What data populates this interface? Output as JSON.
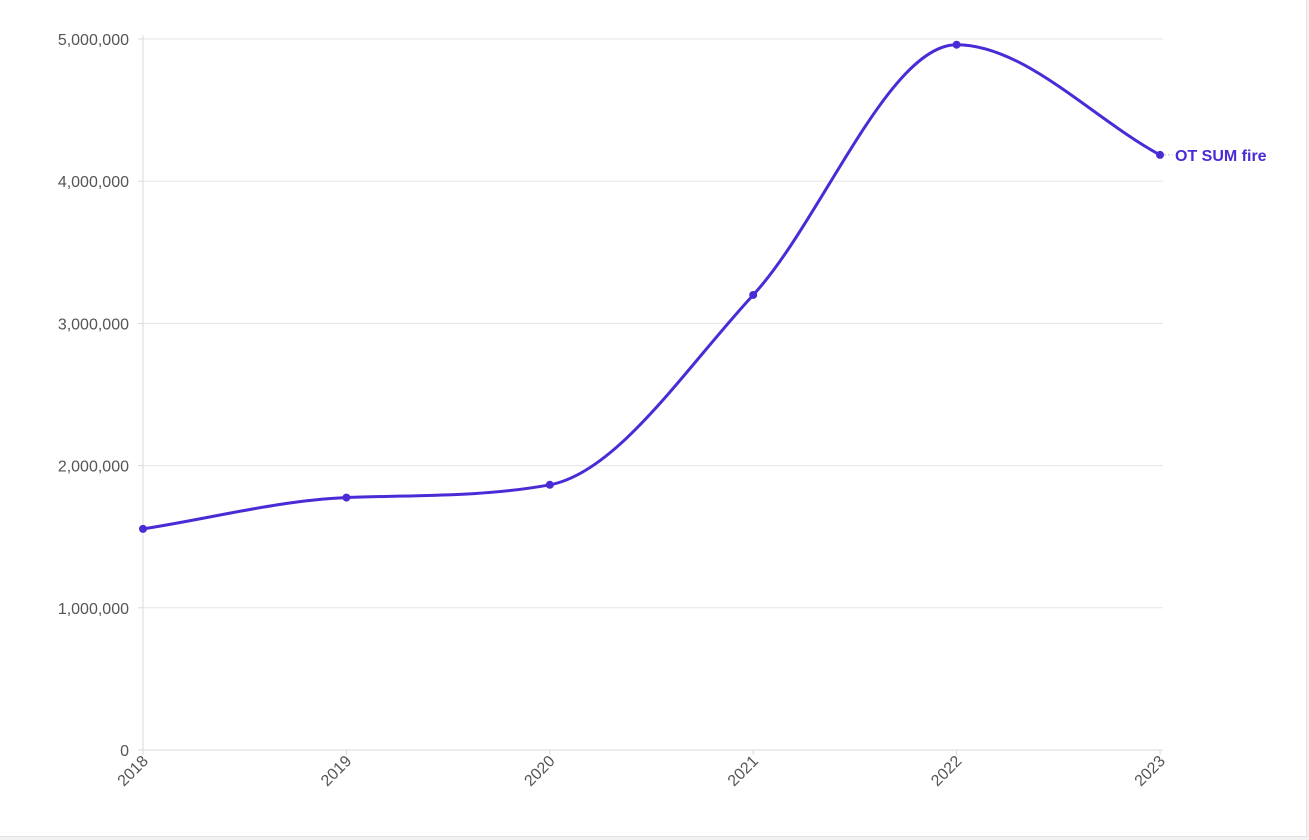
{
  "colors": {
    "series": "#4a2bd6",
    "grid": "#e6e6e6",
    "axis": "#d9d9d9",
    "tick_text": "#555555",
    "background": "#ffffff"
  },
  "chart_data": {
    "type": "line",
    "x": [
      "2018",
      "2019",
      "2020",
      "2021",
      "2022",
      "2023"
    ],
    "series": [
      {
        "name": "OT SUM fire",
        "values": [
          1555000,
          1775000,
          1865000,
          3200000,
          4960000,
          4185000
        ]
      }
    ],
    "yticks": [
      0,
      1000000,
      2000000,
      3000000,
      4000000,
      5000000
    ],
    "ytick_labels": [
      "0",
      "1,000,000",
      "2,000,000",
      "3,000,000",
      "4,000,000",
      "5,000,000"
    ],
    "ylim": [
      0,
      5000000
    ],
    "title": "",
    "xlabel": "",
    "ylabel": "",
    "grid": true,
    "curve": "smooth",
    "legend": "end-of-line label"
  }
}
